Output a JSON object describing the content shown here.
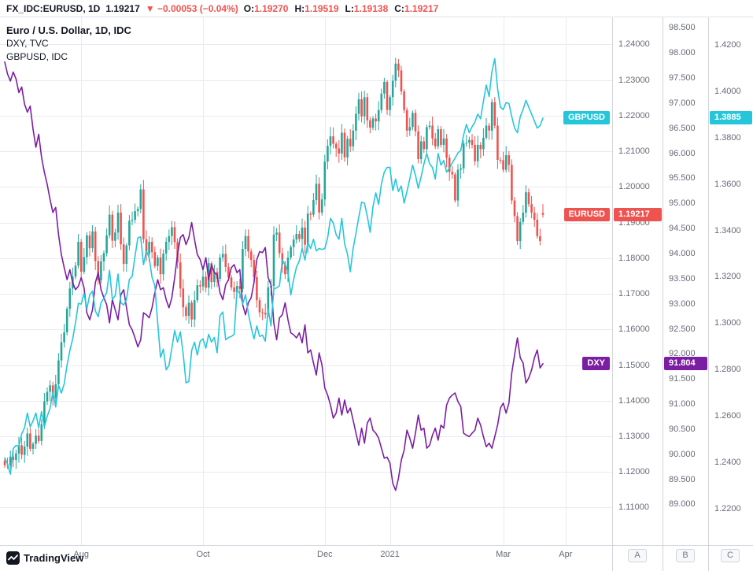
{
  "topbar": {
    "symbol": "FX_IDC:EURUSD, 1D",
    "price": "1.19217",
    "direction": "▼",
    "change": "−0.00053 (−0.04%)",
    "ohlc": {
      "o_label": "O:",
      "o": "1.19270",
      "h_label": "H:",
      "h": "1.19519",
      "l_label": "L:",
      "l": "1.19138",
      "c_label": "C:",
      "c": "1.19217"
    }
  },
  "legend": {
    "line1": "Euro / U.S. Dollar, 1D, IDC",
    "line2": "DXY, TVC",
    "line3": "GBPUSD, IDC"
  },
  "price_labels": {
    "gbpusd": {
      "label": "GBPUSD",
      "value": "1.3885",
      "v": 1.3885,
      "scale": "C",
      "color": "#26c6da"
    },
    "eurusd": {
      "label": "EURUSD",
      "value": "1.19217",
      "v": 1.19217,
      "scale": "A",
      "color": "#ef5350"
    },
    "dxy": {
      "label": "DXY",
      "value": "91.804",
      "v": 91.804,
      "scale": "B",
      "color": "#7b1fa2"
    }
  },
  "scale_buttons": {
    "a": "A",
    "b": "B",
    "c": "C"
  },
  "footer": {
    "brand": "TradingView"
  },
  "chart_data": {
    "type": "mixed",
    "grid_color": "#e7eaf0",
    "x_axis": {
      "labels": [
        {
          "text": "Aug",
          "index": 27
        },
        {
          "text": "Oct",
          "index": 70
        },
        {
          "text": "Dec",
          "index": 113
        },
        {
          "text": "2021",
          "index": 136
        },
        {
          "text": "Mar",
          "index": 176
        },
        {
          "text": "Apr",
          "index": 198
        }
      ]
    },
    "scales": {
      "A": {
        "min": 1.0995,
        "max": 1.2476,
        "ticks": [
          "1.24000",
          "1.23000",
          "1.22000",
          "1.21000",
          "1.20000",
          "1.19000",
          "1.18000",
          "1.17000",
          "1.16000",
          "1.15000",
          "1.14000",
          "1.13000",
          "1.12000",
          "1.11000"
        ]
      },
      "B": {
        "min": 88.19,
        "max": 98.71,
        "ticks": [
          "98.500",
          "98.000",
          "97.500",
          "97.000",
          "96.500",
          "96.000",
          "95.500",
          "95.000",
          "94.500",
          "94.000",
          "93.500",
          "93.000",
          "92.500",
          "92.000",
          "91.500",
          "91.000",
          "90.500",
          "90.000",
          "89.500",
          "89.000"
        ]
      },
      "C": {
        "min": 1.2042,
        "max": 1.432,
        "ticks": [
          "1.4200",
          "1.4000",
          "1.3800",
          "1.3600",
          "1.3400",
          "1.3200",
          "1.3000",
          "1.2800",
          "1.2600",
          "1.2400",
          "1.2200"
        ]
      }
    },
    "series": [
      {
        "name": "EURUSD",
        "type": "candlestick",
        "scale": "A",
        "up_color": "#26a69a",
        "down_color": "#ef5350",
        "last_ohlc": {
          "o": 1.1927,
          "h": 1.19519,
          "l": 1.19138,
          "c": 1.19217
        },
        "closes": [
          1.1219,
          1.1218,
          1.1243,
          1.1234,
          1.1252,
          1.1275,
          1.1248,
          1.1271,
          1.1308,
          1.1265,
          1.1279,
          1.1302,
          1.1287,
          1.1334,
          1.1398,
          1.1425,
          1.1443,
          1.1408,
          1.1446,
          1.1513,
          1.1564,
          1.1592,
          1.1658,
          1.1715,
          1.1748,
          1.1779,
          1.1846,
          1.1762,
          1.1803,
          1.1864,
          1.1828,
          1.1875,
          1.1792,
          1.1738,
          1.1791,
          1.1814,
          1.1864,
          1.1922,
          1.1849,
          1.1872,
          1.1928,
          1.1839,
          1.1784,
          1.1836,
          1.1905,
          1.1908,
          1.1932,
          1.1938,
          1.1993,
          1.1853,
          1.1812,
          1.1846,
          1.1817,
          1.1778,
          1.1802,
          1.1755,
          1.1813,
          1.1846,
          1.1862,
          1.1887,
          1.1845,
          1.1788,
          1.1715,
          1.1662,
          1.1638,
          1.1675,
          1.1628,
          1.1682,
          1.1724,
          1.1721,
          1.1748,
          1.1717,
          1.1786,
          1.1733,
          1.1761,
          1.1742,
          1.1802,
          1.1812,
          1.1775,
          1.1746,
          1.1718,
          1.1705,
          1.1722,
          1.1714,
          1.1826,
          1.1862,
          1.1819,
          1.1795,
          1.1747,
          1.1682,
          1.1648,
          1.1647,
          1.1642,
          1.1718,
          1.1722,
          1.1866,
          1.1872,
          1.1814,
          1.1781,
          1.1755,
          1.1802,
          1.1831,
          1.1852,
          1.1868,
          1.1854,
          1.1886,
          1.1838,
          1.1925,
          1.1922,
          1.1963,
          1.2009,
          1.1928,
          1.1965,
          1.2071,
          1.2115,
          1.2142,
          1.2121,
          1.2108,
          1.2094,
          1.2152,
          1.2083,
          1.2135,
          1.2114,
          1.2158,
          1.2205,
          1.2246,
          1.2198,
          1.2252,
          1.2187,
          1.2166,
          1.2192,
          1.2184,
          1.2216,
          1.2262,
          1.2295,
          1.2216,
          1.2252,
          1.2298,
          1.2346,
          1.2327,
          1.2268,
          1.2216,
          1.2158,
          1.2168,
          1.2208,
          1.2156,
          1.2078,
          1.2128,
          1.2106,
          1.2168,
          1.2172,
          1.2136,
          1.2114,
          1.2162,
          1.2118,
          1.2136,
          1.2082,
          1.2042,
          1.2035,
          1.1962,
          1.2048,
          1.2052,
          1.2122,
          1.2124,
          1.2132,
          1.2118,
          1.2072,
          1.2118,
          1.2106,
          1.2138,
          1.2172,
          1.2158,
          1.2238,
          1.2172,
          1.2076,
          1.2075,
          1.2048,
          1.2089,
          1.2062,
          1.1962,
          1.1918,
          1.1848,
          1.1902,
          1.1928,
          1.1985,
          1.1952,
          1.1928,
          1.1908,
          1.1862,
          1.1848,
          1.19217
        ]
      },
      {
        "name": "DXY",
        "type": "line",
        "scale": "B",
        "color": "#7b1fa2",
        "values": [
          97.82,
          97.58,
          97.44,
          97.62,
          97.48,
          97.21,
          97.32,
          96.98,
          96.82,
          96.94,
          96.48,
          96.12,
          96.38,
          95.92,
          95.62,
          95.38,
          95.08,
          94.82,
          94.92,
          94.38,
          93.98,
          93.72,
          93.48,
          93.68,
          93.42,
          93.28,
          93.35,
          93.52,
          93.32,
          92.82,
          92.68,
          92.88,
          93.42,
          93.62,
          93.28,
          93.12,
          92.98,
          92.62,
          93.08,
          92.88,
          92.68,
          93.18,
          93.28,
          92.92,
          92.58,
          92.48,
          92.32,
          92.14,
          92.28,
          92.82,
          92.78,
          92.72,
          92.92,
          93.22,
          93.48,
          93.28,
          93.32,
          93.08,
          92.92,
          93.12,
          93.52,
          93.98,
          94.32,
          94.38,
          94.18,
          94.32,
          94.62,
          94.28,
          93.98,
          93.88,
          93.68,
          93.92,
          93.48,
          93.78,
          93.62,
          93.58,
          93.22,
          93.08,
          93.38,
          93.48,
          93.72,
          93.78,
          93.62,
          93.68,
          92.98,
          92.78,
          93.02,
          93.12,
          93.42,
          93.88,
          94.04,
          94.02,
          94.12,
          93.52,
          93.38,
          92.62,
          92.28,
          92.72,
          92.78,
          93.02,
          92.68,
          92.42,
          92.38,
          92.32,
          92.42,
          92.22,
          92.58,
          92.02,
          92.08,
          91.82,
          91.58,
          92.02,
          91.78,
          91.32,
          91.18,
          90.98,
          90.72,
          90.82,
          91.12,
          90.78,
          91.08,
          90.82,
          90.92,
          90.68,
          90.42,
          90.18,
          90.52,
          90.22,
          90.62,
          90.72,
          90.48,
          90.42,
          90.32,
          90.12,
          89.92,
          89.94,
          89.82,
          89.42,
          89.28,
          89.52,
          89.88,
          90.08,
          90.48,
          90.32,
          90.12,
          90.42,
          90.78,
          90.48,
          90.52,
          90.12,
          90.18,
          90.38,
          90.52,
          90.28,
          90.58,
          90.52,
          90.98,
          91.12,
          91.18,
          91.22,
          91.05,
          90.95,
          90.42,
          90.38,
          90.35,
          90.42,
          90.48,
          90.72,
          90.58,
          90.35,
          90.15,
          90.22,
          90.12,
          90.35,
          90.58,
          90.92,
          91.02,
          90.82,
          91.02,
          91.62,
          91.98,
          92.32,
          91.92,
          91.82,
          91.42,
          91.52,
          91.68,
          91.92,
          92.08,
          91.72,
          91.804
        ]
      },
      {
        "name": "GBPUSD",
        "type": "line",
        "scale": "C",
        "color": "#26c6da",
        "values": [
          1.2418,
          1.2392,
          1.2348,
          1.2458,
          1.2472,
          1.2468,
          1.2522,
          1.2548,
          1.2612,
          1.2552,
          1.2578,
          1.2612,
          1.2548,
          1.2618,
          1.2552,
          1.2598,
          1.2632,
          1.2702,
          1.2638,
          1.2732,
          1.2698,
          1.2738,
          1.2818,
          1.2882,
          1.2932,
          1.3002,
          1.3085,
          1.3082,
          1.3128,
          1.3062,
          1.3122,
          1.3138,
          1.3052,
          1.3028,
          1.3088,
          1.3108,
          1.3132,
          1.3228,
          1.3102,
          1.3118,
          1.3212,
          1.3088,
          1.3078,
          1.3102,
          1.3188,
          1.3202,
          1.3288,
          1.3368,
          1.3372,
          1.3252,
          1.3312,
          1.3282,
          1.3198,
          1.3162,
          1.3002,
          1.2852,
          1.2888,
          1.2798,
          1.2818,
          1.2892,
          1.2968,
          1.2918,
          1.2962,
          1.2868,
          1.2742,
          1.2748,
          1.2882,
          1.2918,
          1.2862,
          1.2922,
          1.2932,
          1.2892,
          1.2952,
          1.2918,
          1.2938,
          1.2872,
          1.3032,
          1.3048,
          1.2928,
          1.2938,
          1.2942,
          1.2952,
          1.3142,
          1.3128,
          1.3082,
          1.3122,
          1.3042,
          1.2982,
          1.2932,
          1.2988,
          1.2942,
          1.2948,
          1.2922,
          1.3062,
          1.2988,
          1.3148,
          1.3152,
          1.3162,
          1.3272,
          1.3252,
          1.3222,
          1.3122,
          1.3188,
          1.3242,
          1.3268,
          1.3322,
          1.3272,
          1.3348,
          1.3322,
          1.3362,
          1.3312,
          1.3322,
          1.3318,
          1.3322,
          1.3368,
          1.3452,
          1.3432,
          1.3382,
          1.3362,
          1.3452,
          1.3342,
          1.3298,
          1.3222,
          1.3322,
          1.3388,
          1.3458,
          1.3522,
          1.3518,
          1.3462,
          1.3392,
          1.3502,
          1.3562,
          1.3512,
          1.3602,
          1.3652,
          1.3672,
          1.3672,
          1.3572,
          1.3622,
          1.3568,
          1.3592,
          1.3518,
          1.3568,
          1.3622,
          1.3682,
          1.3638,
          1.3582,
          1.3632,
          1.3688,
          1.3732,
          1.3688,
          1.3672,
          1.3622,
          1.3732,
          1.3682,
          1.3702,
          1.3652,
          1.3668,
          1.3692,
          1.3712,
          1.3735,
          1.3745,
          1.3812,
          1.3858,
          1.3822,
          1.3848,
          1.3868,
          1.3902,
          1.3882,
          1.3958,
          1.4028,
          1.3978,
          1.4085,
          1.4142,
          1.4012,
          1.3932,
          1.3922,
          1.3952,
          1.3948,
          1.3892,
          1.3842,
          1.3822,
          1.3892,
          1.3922,
          1.3962,
          1.3932,
          1.3902,
          1.3872,
          1.3842,
          1.3852,
          1.3885
        ]
      }
    ]
  }
}
